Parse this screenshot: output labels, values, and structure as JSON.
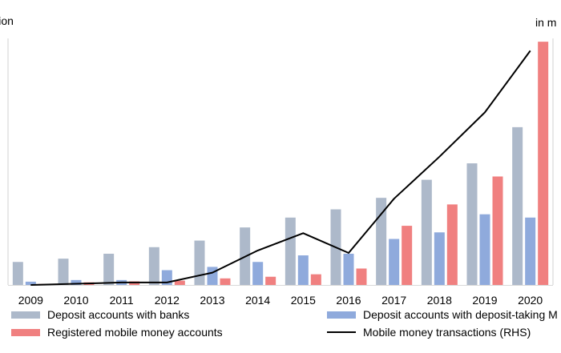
{
  "chart_data": {
    "type": "bar",
    "left_unit": "llion",
    "right_unit": "in m",
    "categories": [
      "2009",
      "2010",
      "2011",
      "2012",
      "2013",
      "2014",
      "2015",
      "2016",
      "2017",
      "2018",
      "2019",
      "2020"
    ],
    "series": [
      {
        "name": "Deposit accounts with banks",
        "kind": "bar",
        "axis": "left",
        "color": "#adb9ca",
        "values": [
          14,
          16,
          19,
          23,
          27,
          35,
          41,
          46,
          53,
          64,
          74,
          96
        ]
      },
      {
        "name": "Deposit accounts with deposit-taking M",
        "kind": "bar",
        "axis": "left",
        "color": "#8faadc",
        "values": [
          2,
          3,
          3,
          9,
          11,
          14,
          18,
          19,
          28,
          32,
          43,
          41
        ]
      },
      {
        "name": "Registered mobile money accounts",
        "kind": "bar",
        "axis": "left",
        "color": "#f08080",
        "values": [
          0.6,
          1.6,
          2.2,
          2.6,
          4,
          5,
          6.5,
          10,
          36,
          49,
          66,
          148
        ]
      },
      {
        "name": "Mobile money transactions (RHS)",
        "kind": "line",
        "axis": "right",
        "color": "#000000",
        "values": [
          0,
          0.5,
          1,
          1,
          5,
          14,
          21,
          13,
          35,
          52,
          70,
          95
        ]
      }
    ],
    "ylim_left": [
      0,
      150
    ],
    "ylim_right": [
      0,
      100
    ],
    "grid": false,
    "legend_position": "bottom"
  }
}
